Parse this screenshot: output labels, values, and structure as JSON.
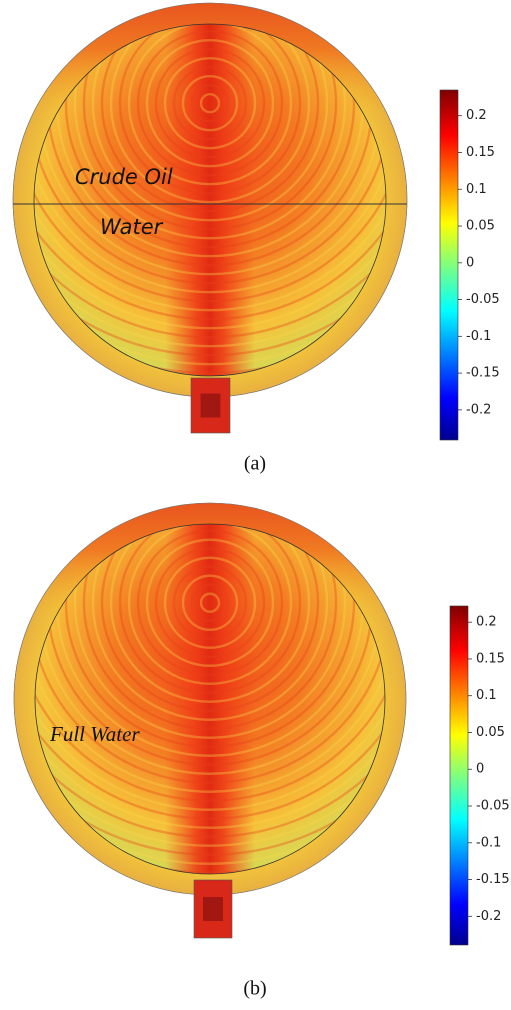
{
  "panels": [
    {
      "labels": [
        "Crude Oil",
        "Water"
      ],
      "caption": "(a)",
      "colorbar": {
        "lim": [
          -0.241,
          0.235
        ],
        "ticks": [
          0.2,
          0.15,
          0.1,
          0.05,
          0,
          -0.05,
          -0.1,
          -0.15,
          -0.2
        ]
      }
    },
    {
      "labels": [
        "Full Water"
      ],
      "caption": "(b)",
      "colorbar": {
        "lim": [
          -0.239,
          0.222
        ],
        "ticks": [
          0.2,
          0.15,
          0.1,
          0.05,
          0,
          -0.05,
          -0.1,
          -0.15,
          -0.2
        ]
      }
    }
  ]
}
